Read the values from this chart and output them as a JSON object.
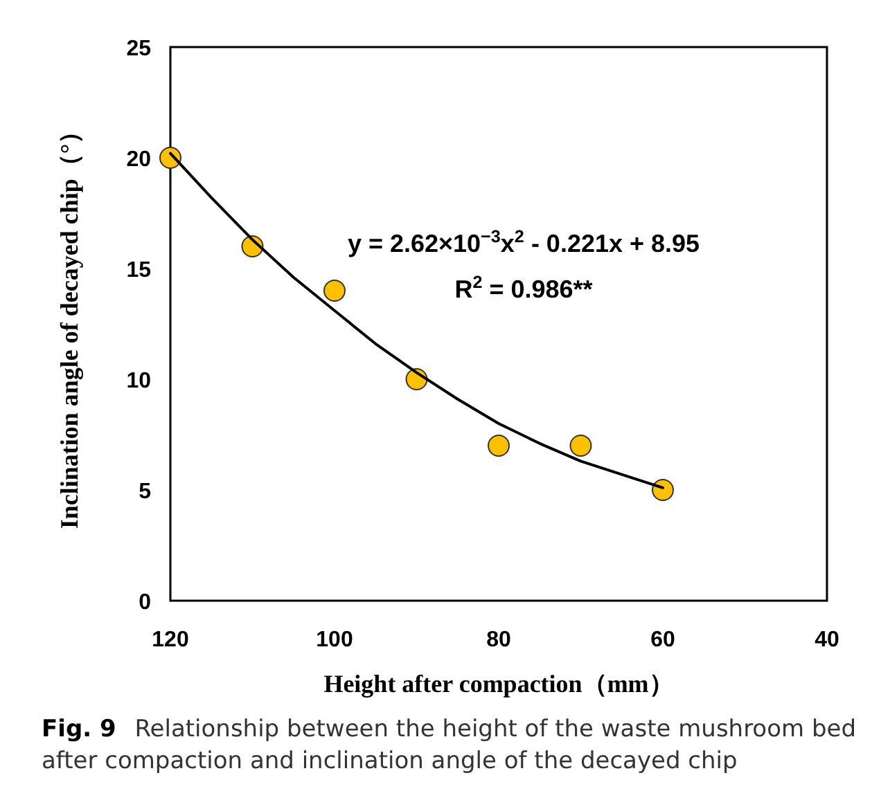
{
  "chart_data": {
    "type": "scatter",
    "xlabel": "Height after compaction（mm）",
    "ylabel": "Inclination angle of decayed chip（°）",
    "xlim": [
      120,
      40
    ],
    "ylim": [
      0,
      25
    ],
    "xticks": [
      120,
      100,
      80,
      60,
      40
    ],
    "yticks": [
      0,
      5,
      10,
      15,
      20,
      25
    ],
    "marker": "circle",
    "series": [
      {
        "color": "#ffc000",
        "x": [
          120,
          110,
          100,
          90,
          80,
          70,
          60
        ],
        "values": [
          20,
          16,
          14,
          10,
          7,
          7,
          5
        ]
      },
      {
        "type": "line",
        "marker": "none",
        "color": "#000000",
        "x": [
          120,
          115,
          110,
          105,
          100,
          95,
          90,
          85,
          80,
          75,
          70,
          65,
          60
        ],
        "values": [
          20.2,
          18.2,
          16.3,
          14.6,
          13.1,
          11.6,
          10.3,
          9.1,
          8.0,
          7.1,
          6.3,
          5.7,
          5.1
        ]
      }
    ],
    "annotations": [
      "y = 2.62×10$^{−3}$x$^{2}$ - 0.221x + 8.95",
      "R$^{2}$ = 0.986**",
      "Fig. 9",
      "Relationship between the height of the waste mushroom bed after compaction and inclination angle of the decayed chip"
    ]
  }
}
